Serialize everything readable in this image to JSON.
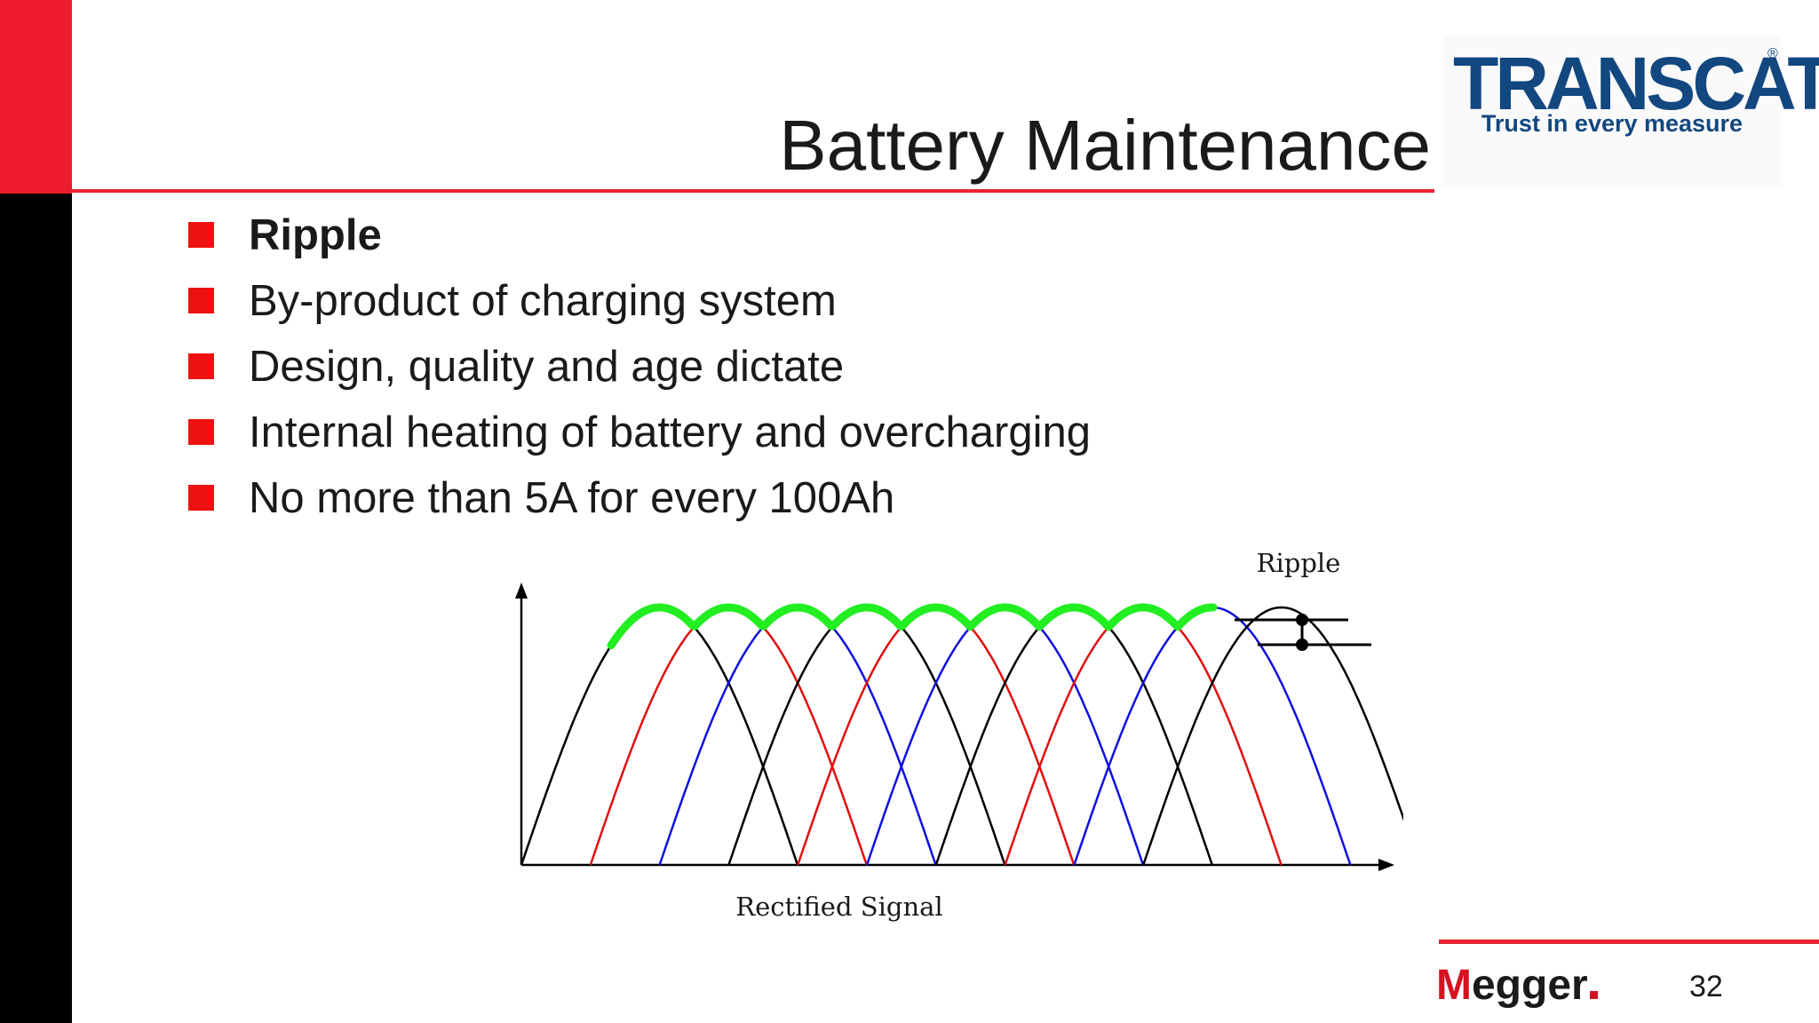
{
  "slide": {
    "title": "Battery Maintenance",
    "page_number": "32"
  },
  "logo": {
    "word": "TRANSCAT",
    "registered": "®",
    "tagline": "Trust in every measure"
  },
  "bullets": [
    {
      "text": "Ripple",
      "bold": true
    },
    {
      "text": "By-product of charging system",
      "bold": false
    },
    {
      "text": "Design, quality and age dictate",
      "bold": false
    },
    {
      "text": "Internal heating of battery and overcharging",
      "bold": false
    },
    {
      "text": "No more than 5A for every 100Ah",
      "bold": false
    }
  ],
  "diagram": {
    "ripple_label": "Ripple",
    "signal_label": "Rectified Signal",
    "colors": {
      "pulses": [
        "#000000",
        "#e01010",
        "#1010e0"
      ],
      "envelope": "#22ee22",
      "axis": "#000000"
    }
  },
  "footer": {
    "brand_first": "M",
    "brand_rest": "egger",
    "brand_colors": {
      "accent": "#d7111f",
      "text": "#1a1a1a"
    }
  },
  "colors": {
    "accent_red": "#ee1c2e",
    "sidebar_black": "#000000",
    "logo_blue": "#12477f",
    "bullet_red": "#ee1111"
  }
}
